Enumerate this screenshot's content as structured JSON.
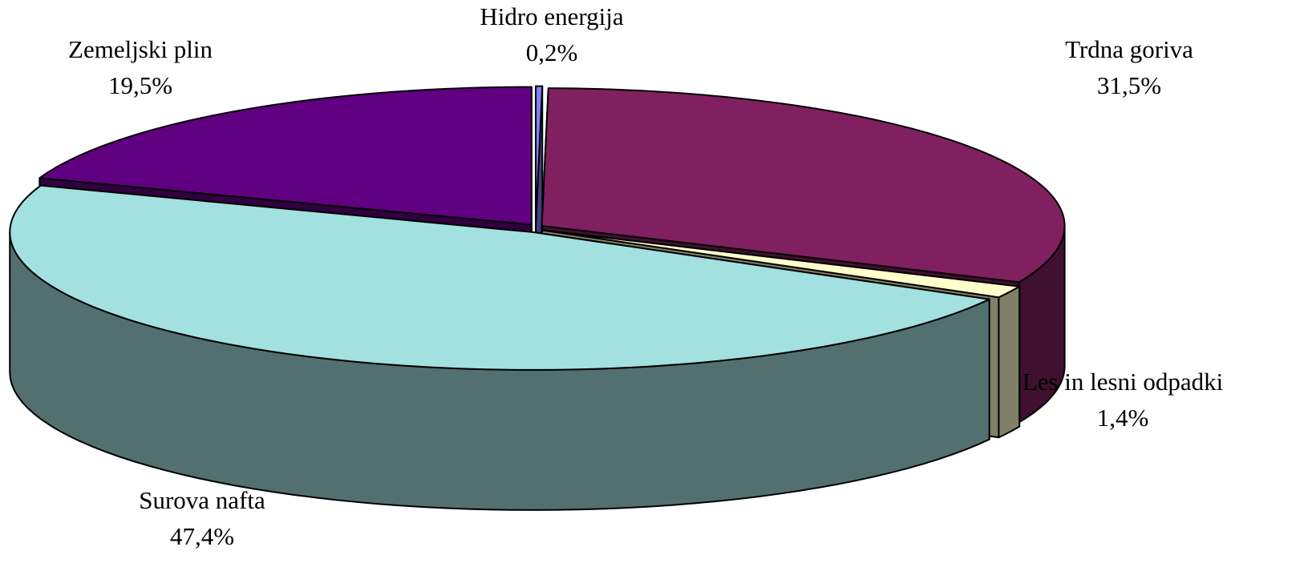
{
  "chart_data": {
    "type": "pie",
    "categories": [
      "Hidro energija",
      "Trdna goriva",
      "Les in lesni odpadki",
      "Surova nafta",
      "Zemeljski plin"
    ],
    "values": [
      0.2,
      31.5,
      1.4,
      47.4,
      19.5
    ],
    "value_labels": [
      "0,2%",
      "31,5%",
      "1,4%",
      "47,4%",
      "19,5%"
    ],
    "colors": [
      "#8080ff",
      "#802060",
      "#ffffcc",
      "#a3e0e0",
      "#600080"
    ]
  }
}
